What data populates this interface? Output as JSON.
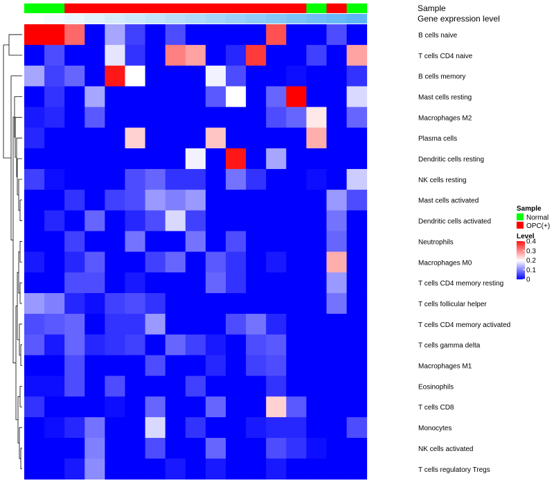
{
  "chart_data": {
    "type": "heatmap",
    "rows": [
      "B cells naive",
      "T cells CD4 naive",
      "B cells memory",
      "Mast cells resting",
      "Macrophages M2",
      "Plasma cells",
      "Dendritic cells resting",
      "NK cells resting",
      "Mast cells activated",
      "Dendritic cells activated",
      "Neutrophils",
      "Macrophages M0",
      "T cells CD4 memory resting",
      "T cells follicular helper",
      "T cells CD4 memory activated",
      "T cells gamma delta",
      "Macrophages M1",
      "Eosinophils",
      "T cells CD8",
      "Monocytes",
      "NK cells activated",
      "T cells regulatory  Tregs"
    ],
    "annotations": [
      {
        "name": "Sample",
        "values": [
          "Normal",
          "Normal",
          "OPC(+)",
          "OPC(+)",
          "OPC(+)",
          "OPC(+)",
          "OPC(+)",
          "OPC(+)",
          "OPC(+)",
          "OPC(+)",
          "OPC(+)",
          "OPC(+)",
          "OPC(+)",
          "OPC(+)",
          "Normal",
          "OPC(+)",
          "Normal"
        ]
      },
      {
        "name": "Gene expression level",
        "values": [
          0.0,
          0.06,
          0.12,
          0.18,
          0.24,
          0.3,
          0.36,
          0.42,
          0.48,
          0.54,
          0.6,
          0.66,
          0.72,
          0.78,
          0.84,
          0.9,
          0.96
        ]
      }
    ],
    "values": [
      [
        0.42,
        0.42,
        0.33,
        0.0,
        0.13,
        0.05,
        0.0,
        0.06,
        0.0,
        0.0,
        0.0,
        0.0,
        0.35,
        0.0,
        0.0,
        0.06,
        0.0
      ],
      [
        0.0,
        0.06,
        0.0,
        0.0,
        0.18,
        0.04,
        0.0,
        0.31,
        0.28,
        0.0,
        0.03,
        0.37,
        0.0,
        0.0,
        0.05,
        0.0,
        0.28
      ],
      [
        0.13,
        0.05,
        0.08,
        0.0,
        0.4,
        0.2,
        0.0,
        0.0,
        0.0,
        0.19,
        0.06,
        0.0,
        0.0,
        0.01,
        0.0,
        0.0,
        0.04
      ],
      [
        0.0,
        0.04,
        0.0,
        0.13,
        0.0,
        0.0,
        0.0,
        0.0,
        0.0,
        0.07,
        0.2,
        0.0,
        0.08,
        0.42,
        0.0,
        0.0,
        0.17
      ],
      [
        0.02,
        0.03,
        0.0,
        0.07,
        0.0,
        0.0,
        0.0,
        0.0,
        0.0,
        0.0,
        0.0,
        0.0,
        0.06,
        0.08,
        0.22,
        0.0,
        0.08
      ],
      [
        0.03,
        0.0,
        0.0,
        0.0,
        0.0,
        0.24,
        0.0,
        0.0,
        0.0,
        0.25,
        0.0,
        0.0,
        0.0,
        0.0,
        0.27,
        0.0,
        0.0
      ],
      [
        0.0,
        0.0,
        0.0,
        0.0,
        0.0,
        0.0,
        0.0,
        0.0,
        0.19,
        0.0,
        0.4,
        0.0,
        0.13,
        0.0,
        0.0,
        0.0,
        0.0
      ],
      [
        0.05,
        0.01,
        0.0,
        0.0,
        0.0,
        0.06,
        0.08,
        0.04,
        0.04,
        0.0,
        0.09,
        0.04,
        0.0,
        0.0,
        0.01,
        0.0,
        0.16
      ],
      [
        0.0,
        0.0,
        0.04,
        0.0,
        0.05,
        0.06,
        0.12,
        0.1,
        0.12,
        0.0,
        0.0,
        0.0,
        0.0,
        0.0,
        0.0,
        0.12,
        0.06
      ],
      [
        0.0,
        0.03,
        0.0,
        0.08,
        0.0,
        0.03,
        0.06,
        0.17,
        0.05,
        0.0,
        0.0,
        0.0,
        0.0,
        0.0,
        0.0,
        0.09,
        0.0
      ],
      [
        0.0,
        0.0,
        0.05,
        0.0,
        0.0,
        0.09,
        0.0,
        0.0,
        0.09,
        0.0,
        0.06,
        0.0,
        0.0,
        0.0,
        0.0,
        0.08,
        0.0
      ],
      [
        0.02,
        0.0,
        0.03,
        0.07,
        0.0,
        0.0,
        0.05,
        0.08,
        0.0,
        0.07,
        0.04,
        0.0,
        0.02,
        0.0,
        0.0,
        0.27,
        0.0
      ],
      [
        0.0,
        0.0,
        0.06,
        0.06,
        0.0,
        0.02,
        0.0,
        0.0,
        0.0,
        0.08,
        0.04,
        0.0,
        0.0,
        0.0,
        0.0,
        0.12,
        0.0
      ],
      [
        0.12,
        0.1,
        0.03,
        0.01,
        0.05,
        0.06,
        0.04,
        0.0,
        0.0,
        0.0,
        0.0,
        0.0,
        0.0,
        0.0,
        0.0,
        0.09,
        0.0
      ],
      [
        0.06,
        0.07,
        0.08,
        0.0,
        0.04,
        0.04,
        0.12,
        0.0,
        0.0,
        0.0,
        0.06,
        0.09,
        0.03,
        0.0,
        0.0,
        0.0,
        0.0
      ],
      [
        0.07,
        0.02,
        0.08,
        0.03,
        0.04,
        0.05,
        0.0,
        0.08,
        0.05,
        0.02,
        0.0,
        0.06,
        0.07,
        0.0,
        0.0,
        0.0,
        0.0
      ],
      [
        0.0,
        0.0,
        0.06,
        0.0,
        0.0,
        0.0,
        0.06,
        0.0,
        0.0,
        0.03,
        0.0,
        0.05,
        0.06,
        0.0,
        0.0,
        0.0,
        0.0
      ],
      [
        0.01,
        0.01,
        0.06,
        0.0,
        0.06,
        0.0,
        0.0,
        0.0,
        0.05,
        0.0,
        0.0,
        0.0,
        0.04,
        0.0,
        0.0,
        0.0,
        0.0
      ],
      [
        0.04,
        0.0,
        0.0,
        0.0,
        0.01,
        0.0,
        0.08,
        0.0,
        0.0,
        0.08,
        0.0,
        0.0,
        0.24,
        0.07,
        0.0,
        0.0,
        0.0
      ],
      [
        0.0,
        0.01,
        0.03,
        0.09,
        0.0,
        0.0,
        0.17,
        0.0,
        0.04,
        0.0,
        0.0,
        0.02,
        0.03,
        0.03,
        0.0,
        0.0,
        0.06
      ],
      [
        0.0,
        0.0,
        0.0,
        0.1,
        0.0,
        0.0,
        0.06,
        0.0,
        0.0,
        0.08,
        0.0,
        0.0,
        0.06,
        0.04,
        0.01,
        0.0,
        0.0
      ],
      [
        0.0,
        0.0,
        0.02,
        0.11,
        0.0,
        0.0,
        0.0,
        0.02,
        0.0,
        0.02,
        0.0,
        0.0,
        0.02,
        0.0,
        0.0,
        0.0,
        0.0
      ]
    ],
    "color_scale": {
      "low": "#0000ff",
      "mid": "#ffffff",
      "high": "#ff0000",
      "min": 0,
      "mid_value": 0.2,
      "max": 0.42
    },
    "annotation_colors": {
      "Normal": "#00ff00",
      "OPC(+)": "#ff0000",
      "expr_low": "#ffffff",
      "expr_high": "#56b1f7"
    },
    "legend": {
      "sample_title": "Sample",
      "sample_items": [
        {
          "label": "Normal",
          "color": "#00ff00"
        },
        {
          "label": "OPC(+)",
          "color": "#ff0000"
        }
      ],
      "level_title": "Level",
      "level_ticks": [
        {
          "value": 0.4,
          "label": "0.4"
        },
        {
          "value": 0.3,
          "label": "0.3"
        },
        {
          "value": 0.2,
          "label": "0.2"
        },
        {
          "value": 0.1,
          "label": "0.1"
        },
        {
          "value": 0,
          "label": "0"
        }
      ],
      "placement": "right"
    }
  }
}
